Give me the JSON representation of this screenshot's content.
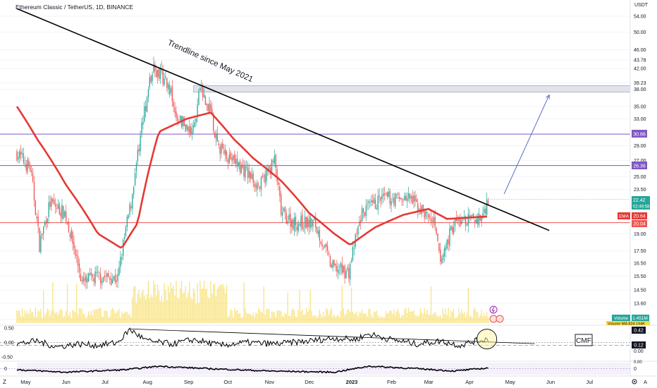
{
  "header": {
    "symbol_title": "Ethereum Classic / TetherUS, 1D, BINANCE"
  },
  "annotations": {
    "trendline_label": "Trendline since May 2021",
    "cmf_label": "CMF"
  },
  "price_axis": {
    "currency": "USDT",
    "ticks": [
      "54.00",
      "50.00",
      "46.00",
      "43.78",
      "42.00",
      "39.23",
      "38.00",
      "35.00",
      "33.00",
      "29.00",
      "27.00",
      "25.00",
      "23.50",
      "19.00",
      "17.50",
      "16.50",
      "15.50",
      "14.50",
      "13.60",
      "12.60"
    ],
    "tick_values": [
      54.0,
      50.0,
      46.0,
      43.78,
      42.0,
      39.23,
      38.0,
      35.0,
      33.0,
      29.0,
      27.0,
      25.0,
      23.5,
      19.0,
      17.5,
      16.5,
      15.5,
      14.5,
      13.6,
      12.6
    ],
    "badges": {
      "level_high": "30.66",
      "level_mid": "26.36",
      "last_price": "22.42",
      "countdown": "02:49:58",
      "ema_label": "EMA",
      "ema_value": "20.64",
      "support": "20.04",
      "volume_label": "Volume",
      "volume_value": "1.451M",
      "volume_ma_partial": "Volume MA 834.194K"
    }
  },
  "cmf_axis": {
    "ticks": [
      "0.50",
      "0.00",
      "-0.50"
    ],
    "badge_top": "0.42",
    "badge_value": "0.12",
    "zero_label": "0.00"
  },
  "osc_axis": {
    "tick": "0",
    "partial_tick": "0.00"
  },
  "time_axis": {
    "labels": [
      "May",
      "Jun",
      "Jul",
      "Aug",
      "Sep",
      "Oct",
      "Nov",
      "Dec",
      "2023",
      "Feb",
      "Mar",
      "Apr",
      "May",
      "Jun",
      "Jul"
    ]
  },
  "misc": {
    "tv_logo": "Z",
    "auto_label": "A",
    "settings_icon": "gear-icon",
    "lightning_icon": "lightning-icon",
    "flag_icon": "flag-icon"
  },
  "colors": {
    "ema": "#e53935",
    "level_purple": "#7e57c2",
    "support_red": "#ef5350",
    "up": "#26a69a",
    "down": "#ef5350",
    "volume": "#f7d94c",
    "last_price": "#26a69a"
  },
  "chart_data": [
    {
      "type": "candlestick",
      "title": "Ethereum Classic / TetherUS, 1D, BINANCE",
      "y_unit": "USDT",
      "ylim": [
        12.0,
        56.0
      ],
      "x_range": [
        "2022-04-25",
        "2023-07-31"
      ],
      "close_path": [
        [
          "2022-04-25",
          28.0
        ],
        [
          "2022-05-05",
          26.0
        ],
        [
          "2022-05-12",
          18.0
        ],
        [
          "2022-05-20",
          22.0
        ],
        [
          "2022-05-31",
          21.0
        ],
        [
          "2022-06-13",
          15.0
        ],
        [
          "2022-06-25",
          15.5
        ],
        [
          "2022-07-10",
          15.3
        ],
        [
          "2022-07-20",
          22.0
        ],
        [
          "2022-07-27",
          30.0
        ],
        [
          "2022-08-05",
          42.0
        ],
        [
          "2022-08-15",
          40.0
        ],
        [
          "2022-08-25",
          33.0
        ],
        [
          "2022-09-05",
          31.0
        ],
        [
          "2022-09-10",
          38.0
        ],
        [
          "2022-09-18",
          34.0
        ],
        [
          "2022-09-23",
          29.0
        ],
        [
          "2022-10-05",
          27.0
        ],
        [
          "2022-10-15",
          25.5
        ],
        [
          "2022-10-25",
          23.8
        ],
        [
          "2022-11-05",
          27.0
        ],
        [
          "2022-11-10",
          21.0
        ],
        [
          "2022-11-20",
          20.0
        ],
        [
          "2022-12-05",
          20.0
        ],
        [
          "2022-12-18",
          16.2
        ],
        [
          "2022-12-31",
          15.8
        ],
        [
          "2023-01-10",
          21.0
        ],
        [
          "2023-01-25",
          22.5
        ],
        [
          "2023-02-15",
          22.5
        ],
        [
          "2023-03-05",
          20.0
        ],
        [
          "2023-03-10",
          16.5
        ],
        [
          "2023-03-20",
          20.0
        ],
        [
          "2023-04-10",
          20.5
        ],
        [
          "2023-04-15",
          22.42
        ]
      ],
      "ema": [
        [
          "2022-04-25",
          35.0
        ],
        [
          "2022-05-10",
          30.0
        ],
        [
          "2022-06-01",
          24.0
        ],
        [
          "2022-06-25",
          19.0
        ],
        [
          "2022-07-13",
          17.7
        ],
        [
          "2022-07-25",
          20.0
        ],
        [
          "2022-08-10",
          31.0
        ],
        [
          "2022-08-31",
          33.0
        ],
        [
          "2022-09-18",
          34.0
        ],
        [
          "2022-10-05",
          30.0
        ],
        [
          "2022-10-20",
          27.3
        ],
        [
          "2022-11-10",
          24.5
        ],
        [
          "2022-12-01",
          21.0
        ],
        [
          "2022-12-20",
          19.0
        ],
        [
          "2023-01-01",
          18.0
        ],
        [
          "2023-01-20",
          19.6
        ],
        [
          "2023-02-10",
          20.8
        ],
        [
          "2023-03-01",
          21.4
        ],
        [
          "2023-03-15",
          20.4
        ],
        [
          "2023-04-15",
          20.64
        ]
      ],
      "horizontal_levels": [
        {
          "value": 30.66,
          "color": "#7e57c2"
        },
        {
          "value": 26.36,
          "color": "#7e57c2"
        },
        {
          "value": 20.04,
          "color": "#ef5350"
        }
      ],
      "zone": {
        "from": 37.5,
        "to": 38.7,
        "x_start": "2022-09-05",
        "x_end": "2023-07-31"
      },
      "trendline": {
        "start": [
          "2022-04-25",
          56.0
        ],
        "end": [
          "2023-05-31",
          19.3
        ]
      },
      "projection_arrow": {
        "start": [
          "2023-04-27",
          23.0
        ],
        "end": [
          "2023-05-31",
          37.0
        ]
      }
    },
    {
      "type": "line",
      "title": "CMF",
      "ylim": [
        -0.6,
        0.55
      ],
      "ticks": [
        0.5,
        0.0,
        -0.5
      ],
      "series": [
        {
          "values": [
            [
              "2022-04-25",
              -0.05
            ],
            [
              "2022-05-10",
              0.05
            ],
            [
              "2022-05-25",
              -0.15
            ],
            [
              "2022-06-10",
              -0.05
            ],
            [
              "2022-06-25",
              -0.1
            ],
            [
              "2022-07-10",
              0.0
            ],
            [
              "2022-07-19",
              0.45
            ],
            [
              "2022-08-01",
              0.05
            ],
            [
              "2022-08-20",
              -0.05
            ],
            [
              "2022-09-05",
              0.1
            ],
            [
              "2022-09-25",
              -0.1
            ],
            [
              "2022-10-15",
              0.0
            ],
            [
              "2022-11-05",
              -0.05
            ],
            [
              "2022-12-01",
              0.05
            ],
            [
              "2022-12-20",
              0.15
            ],
            [
              "2023-01-05",
              0.1
            ],
            [
              "2023-01-15",
              0.3
            ],
            [
              "2023-02-01",
              0.1
            ],
            [
              "2023-02-20",
              -0.05
            ],
            [
              "2023-03-10",
              0.05
            ],
            [
              "2023-03-25",
              -0.1
            ],
            [
              "2023-04-05",
              0.05
            ],
            [
              "2023-04-15",
              0.12
            ]
          ]
        }
      ],
      "trendline": {
        "start": [
          "2022-07-19",
          0.47
        ],
        "end": [
          "2023-05-20",
          -0.04
        ]
      },
      "dashed_level": -0.1
    },
    {
      "type": "area",
      "title": "",
      "ylim": [
        -0.5,
        0.5
      ],
      "series": [
        {
          "values": [
            [
              "2022-04-25",
              -0.1
            ],
            [
              "2022-06-01",
              -0.3
            ],
            [
              "2022-07-15",
              -0.1
            ],
            [
              "2022-08-10",
              0.2
            ],
            [
              "2022-09-15",
              0.0
            ],
            [
              "2022-11-01",
              -0.2
            ],
            [
              "2022-12-20",
              -0.3
            ],
            [
              "2023-01-15",
              0.2
            ],
            [
              "2023-02-20",
              0.0
            ],
            [
              "2023-03-20",
              -0.2
            ],
            [
              "2023-04-15",
              0.05
            ]
          ]
        }
      ]
    }
  ]
}
